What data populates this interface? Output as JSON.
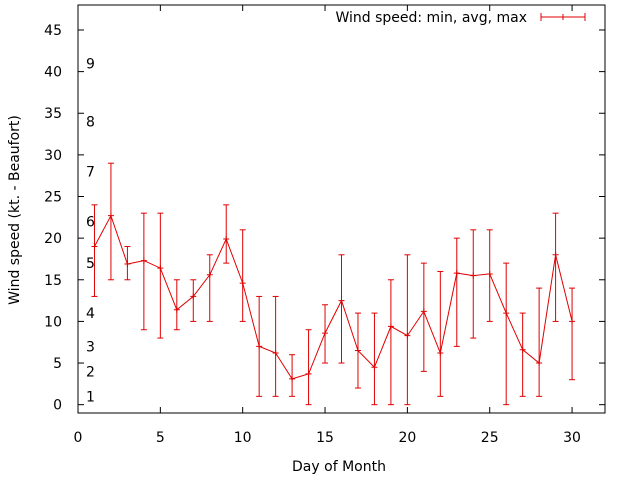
{
  "chart_data": {
    "type": "line",
    "title": "",
    "xlabel": "Day of Month",
    "ylabel": "Wind speed (kt. - Beaufort)",
    "xlim": [
      0,
      32
    ],
    "ylim": [
      -1,
      48
    ],
    "x_ticks": [
      0,
      5,
      10,
      15,
      20,
      25,
      30
    ],
    "y_ticks": [
      0,
      5,
      10,
      15,
      20,
      25,
      30,
      35,
      40,
      45
    ],
    "grid": false,
    "legend_position": "top-right",
    "series_color": "#e00000",
    "series": [
      {
        "name": "Wind speed: min, avg, max",
        "x": [
          1,
          2,
          3,
          4,
          5,
          6,
          7,
          8,
          9,
          10,
          11,
          12,
          13,
          14,
          15,
          16,
          17,
          18,
          19,
          20,
          21,
          22,
          23,
          24,
          25,
          26,
          27,
          28,
          29,
          30
        ],
        "avg": [
          19,
          22.7,
          16.9,
          17.3,
          16.4,
          11.4,
          13,
          15.6,
          19.9,
          14.6,
          7,
          6.2,
          3.1,
          3.7,
          8.6,
          12.5,
          6.5,
          4.5,
          9.4,
          8.3,
          11.2,
          6.2,
          15.8,
          15.5,
          15.7,
          11,
          6.6,
          5,
          18,
          10
        ],
        "min": [
          13,
          15,
          15,
          9,
          8,
          9,
          10,
          10,
          17,
          10,
          1,
          1,
          1,
          0,
          5,
          5,
          2,
          0,
          0,
          0,
          4,
          1,
          7,
          8,
          10,
          0,
          1,
          1,
          10,
          3
        ],
        "max": [
          24,
          29,
          19,
          23,
          23,
          15,
          15,
          18,
          24,
          21,
          13,
          13,
          6,
          9,
          12,
          18,
          11,
          11,
          15,
          18,
          17,
          16,
          20,
          21,
          21,
          17,
          11,
          14,
          23,
          14
        ]
      }
    ],
    "annotations": [
      {
        "text": "1",
        "y": 1
      },
      {
        "text": "2",
        "y": 4
      },
      {
        "text": "3",
        "y": 7
      },
      {
        "text": "4",
        "y": 11
      },
      {
        "text": "5",
        "y": 17
      },
      {
        "text": "6",
        "y": 22
      },
      {
        "text": "7",
        "y": 28
      },
      {
        "text": "8",
        "y": 34
      },
      {
        "text": "9",
        "y": 41
      }
    ]
  }
}
